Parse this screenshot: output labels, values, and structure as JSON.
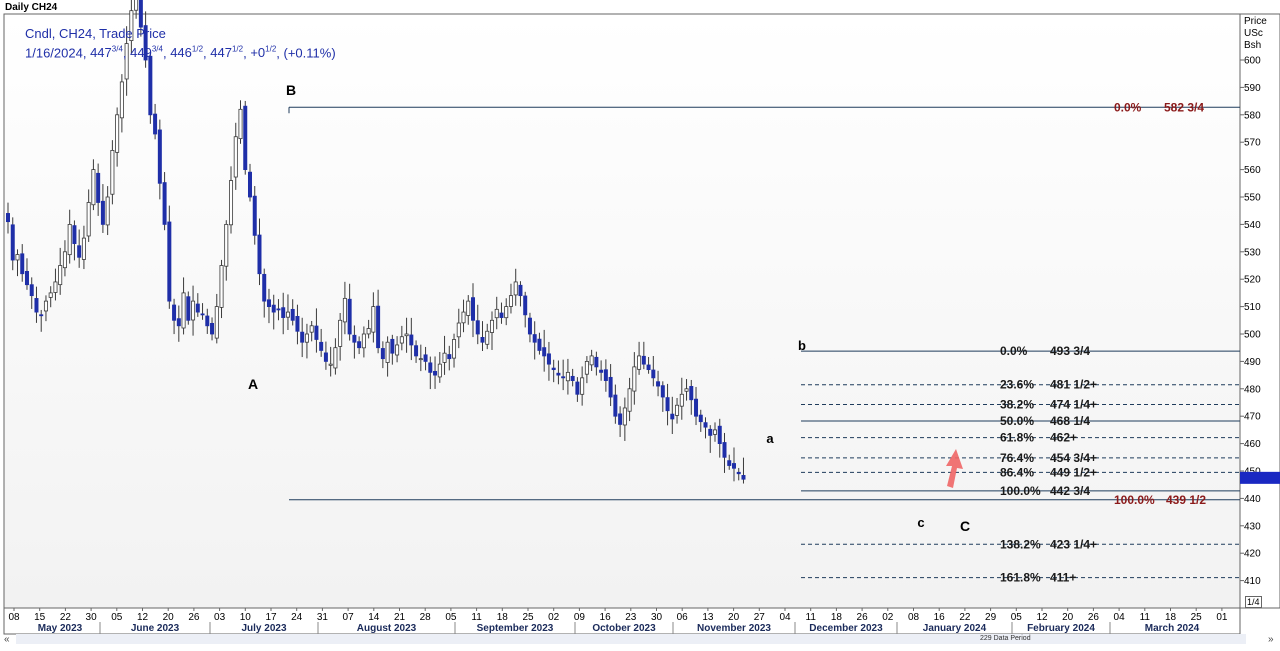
{
  "window_title": "Daily CH24",
  "legend": {
    "line1": "Cndl, CH24, Trade Price",
    "date": "1/16/2024",
    "open_whole": "447",
    "open_frac": "3/4",
    "high_whole": "449",
    "high_frac": "3/4",
    "low_whole": "446",
    "low_frac": "1/2",
    "close_whole": "447",
    "close_frac": "1/2",
    "change_whole": "+0",
    "change_frac": "1/2",
    "change_pct": "(+0.11%)"
  },
  "axis_header": {
    "line1": "Price",
    "line2": "USc",
    "line3": "Bsh"
  },
  "footer": {
    "data_period": "229 Data Period",
    "page_indicator": "1/4",
    "nav_left": "«",
    "nav_right": "»"
  },
  "colors": {
    "bear": "#1f2fa8",
    "bull": "#ffffff",
    "outline": "#3a3a3a",
    "fib_line": "#1f3c5c",
    "fib_label_dark": "#1a1a1a",
    "fib_label_red": "#8b1a1a",
    "price_marker": "#1a28c2",
    "arrow": "#ef6666"
  },
  "chart_data": {
    "type": "candlestick",
    "title": "Daily CH24",
    "ylabel": "Price USc Bsh",
    "ylim": [
      400,
      615
    ],
    "y_ticks": [
      410,
      420,
      430,
      440,
      450,
      460,
      470,
      480,
      490,
      500,
      510,
      520,
      530,
      540,
      550,
      560,
      570,
      580,
      590,
      600
    ],
    "grid": false,
    "last_price": 447.5,
    "x_day_ticks": [
      "08",
      "15",
      "22",
      "30",
      "05",
      "12",
      "20",
      "26",
      "03",
      "10",
      "17",
      "24",
      "31",
      "07",
      "14",
      "21",
      "28",
      "05",
      "11",
      "18",
      "25",
      "02",
      "09",
      "16",
      "23",
      "30",
      "06",
      "13",
      "20",
      "27",
      "04",
      "11",
      "18",
      "26",
      "02",
      "08",
      "16",
      "22",
      "29",
      "05",
      "12",
      "20",
      "26",
      "04",
      "11",
      "18",
      "25",
      "01"
    ],
    "months": [
      "May 2023",
      "June 2023",
      "July 2023",
      "August 2023",
      "September 2023",
      "October 2023",
      "November 2023",
      "December 2023",
      "January 2024",
      "February 2024",
      "March 2024"
    ],
    "wave_labels": [
      "B",
      "A",
      "b",
      "a",
      "c",
      "C"
    ],
    "closes": [
      541,
      527,
      529,
      522,
      518,
      514,
      508,
      507,
      512,
      515,
      519,
      525,
      530,
      540,
      533,
      528,
      535,
      548,
      560,
      548,
      540,
      550,
      567,
      580,
      592,
      606,
      618,
      624,
      612,
      600,
      580,
      573,
      555,
      540,
      512,
      505,
      503,
      515,
      505,
      512,
      508,
      507,
      503,
      500,
      510,
      525,
      540,
      556,
      572,
      582,
      560,
      550,
      536,
      522,
      512,
      510,
      508,
      509,
      506,
      508,
      505,
      501,
      497,
      500,
      503,
      498,
      494,
      490,
      489,
      495,
      505,
      513,
      500,
      497,
      495,
      500,
      502,
      510,
      495,
      491,
      497,
      493,
      496,
      499,
      500,
      496,
      492,
      491,
      490,
      486,
      485,
      489,
      493,
      491,
      498,
      504,
      508,
      512,
      505,
      500,
      497,
      501,
      505,
      509,
      506,
      510,
      514,
      519,
      514,
      507,
      500,
      497,
      494,
      492,
      489,
      487,
      485,
      484,
      486,
      483,
      478,
      484,
      490,
      492,
      488,
      486,
      483,
      477,
      470,
      467,
      473,
      480,
      488,
      492,
      489,
      487,
      484,
      481,
      477,
      472,
      469,
      474,
      478,
      480,
      476,
      470,
      468,
      466,
      463,
      465,
      460,
      455,
      452,
      451,
      449,
      447
    ],
    "fib_levels_large": [
      {
        "pct": "0.0%",
        "price": "582 3/4",
        "value": 582.75
      },
      {
        "pct": "100.0%",
        "price": "439 1/2",
        "value": 439.5
      }
    ],
    "fib_levels_small": [
      {
        "pct": "0.0%",
        "price": "493 3/4",
        "value": 493.75
      },
      {
        "pct": "23.6%",
        "price": "481 1/2+",
        "value": 481.5
      },
      {
        "pct": "38.2%",
        "price": "474 1/4+",
        "value": 474.25
      },
      {
        "pct": "50.0%",
        "price": "468 1/4",
        "value": 468.25
      },
      {
        "pct": "61.8%",
        "price": "462+",
        "value": 462.2
      },
      {
        "pct": "76.4%",
        "price": "454 3/4+",
        "value": 454.8
      },
      {
        "pct": "86.4%",
        "price": "449 1/2+",
        "value": 449.5
      },
      {
        "pct": "100.0%",
        "price": "442 3/4",
        "value": 442.75
      },
      {
        "pct": "138.2%",
        "price": "423 1/4+",
        "value": 423.25
      },
      {
        "pct": "161.8%",
        "price": "411+",
        "value": 411.1
      }
    ]
  }
}
